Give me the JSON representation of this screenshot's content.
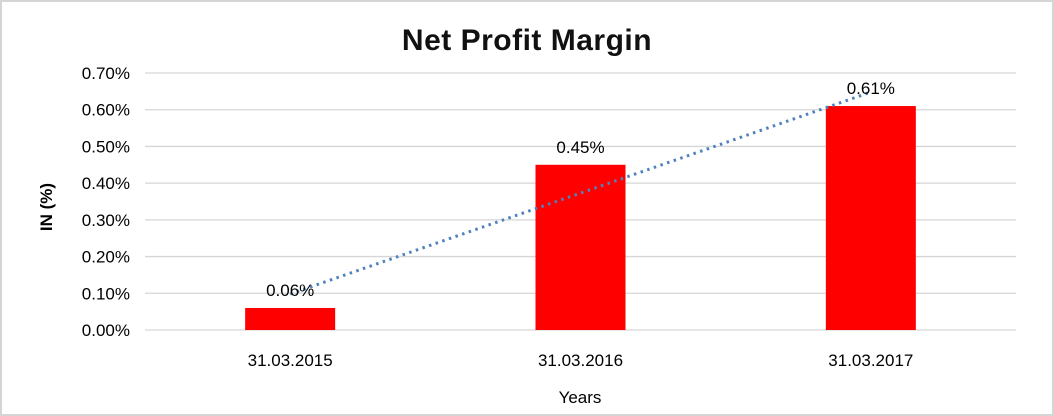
{
  "chart": {
    "background_color": "#FFFFFF",
    "border_color": "#D5D5D5"
  },
  "chart_data": {
    "type": "bar",
    "title": "Net Profit Margin",
    "xlabel": "Years",
    "ylabel": "IN (%)",
    "categories": [
      "31.03.2015",
      "31.03.2016",
      "31.03.2017"
    ],
    "values": [
      0.06,
      0.45,
      0.61
    ],
    "data_labels": [
      "0.06%",
      "0.45%",
      "0.61%"
    ],
    "y_ticks": [
      {
        "value": 0.0,
        "label": "0.00%"
      },
      {
        "value": 0.1,
        "label": "0.10%"
      },
      {
        "value": 0.2,
        "label": "0.20%"
      },
      {
        "value": 0.3,
        "label": "0.30%"
      },
      {
        "value": 0.4,
        "label": "0.40%"
      },
      {
        "value": 0.5,
        "label": "0.50%"
      },
      {
        "value": 0.6,
        "label": "0.60%"
      },
      {
        "value": 0.7,
        "label": "0.70%"
      }
    ],
    "ylim": [
      0,
      0.7
    ],
    "grid": true,
    "legend_position": "none",
    "bar_color": "#FF0000",
    "gridline_color": "#D6D6D6",
    "text_color": "#000000",
    "trendline": {
      "type": "linear",
      "style": "dotted",
      "color": "#4F81BD",
      "start_value": 0.098,
      "end_value": 0.648
    }
  }
}
